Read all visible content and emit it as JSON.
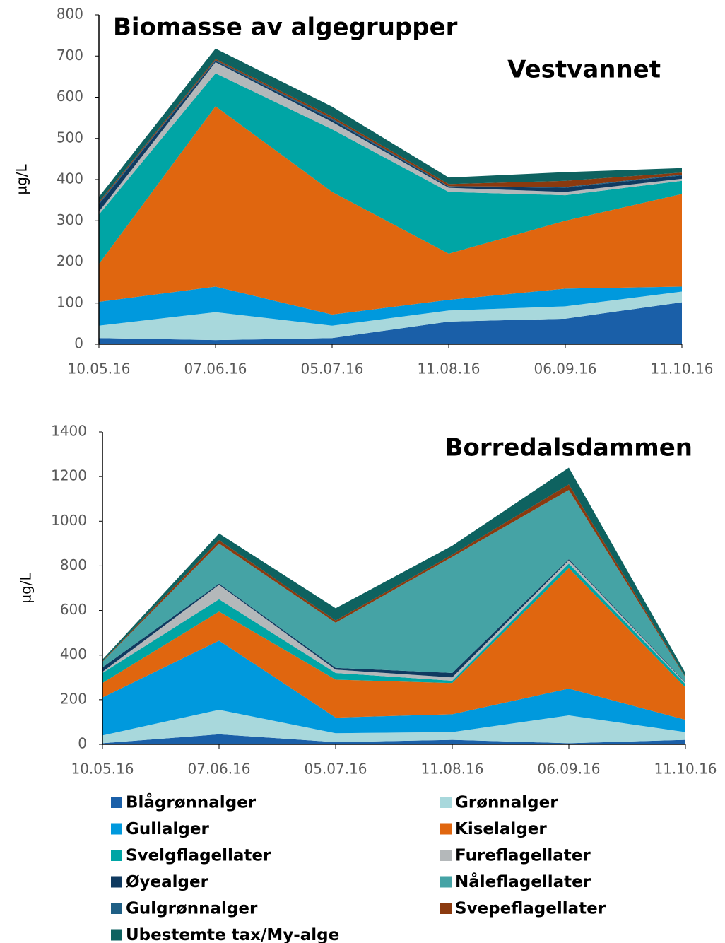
{
  "chart_data": [
    {
      "type": "stacked-area",
      "title": "Biomasse av algegrupper",
      "subtitle": "Vestvannet",
      "ylabel": "µg/L",
      "categories": [
        "10.05.16",
        "07.06.16",
        "05.07.16",
        "11.08.16",
        "06.09.16",
        "11.10.16"
      ],
      "ylim": [
        0,
        800
      ],
      "yticks": [
        0,
        100,
        200,
        300,
        400,
        500,
        600,
        700,
        800
      ],
      "series": [
        {
          "name": "Blågrønnalger",
          "color": "#1a5fa8",
          "values": [
            15,
            10,
            15,
            55,
            62,
            102
          ]
        },
        {
          "name": "Grønnalger",
          "color": "#a8d8dc",
          "values": [
            30,
            68,
            30,
            27,
            30,
            26
          ]
        },
        {
          "name": "Gullalger",
          "color": "#0099dd",
          "values": [
            58,
            62,
            27,
            26,
            43,
            12
          ]
        },
        {
          "name": "Kiselalger",
          "color": "#e0660f",
          "values": [
            92,
            438,
            298,
            112,
            165,
            225
          ]
        },
        {
          "name": "Svelgflagellater",
          "color": "#00a5a5",
          "values": [
            120,
            80,
            152,
            150,
            62,
            32
          ]
        },
        {
          "name": "Fureflagellater",
          "color": "#b4b8ba",
          "values": [
            7,
            27,
            18,
            10,
            8,
            5
          ]
        },
        {
          "name": "Øyealger",
          "color": "#0f3a60",
          "values": [
            18,
            3,
            5,
            3,
            10,
            8
          ]
        },
        {
          "name": "Nåleflagellater",
          "color": "#45a3a5",
          "values": [
            0,
            0,
            0,
            0,
            0,
            0
          ]
        },
        {
          "name": "Gulgrønnalger",
          "color": "#1f5f85",
          "values": [
            3,
            2,
            3,
            1,
            2,
            2
          ]
        },
        {
          "name": "Svepeflagellater",
          "color": "#8b3a0f",
          "values": [
            3,
            3,
            5,
            5,
            15,
            5
          ]
        },
        {
          "name": "Ubestemte tax/My-alge",
          "color": "#0e6260",
          "values": [
            12,
            25,
            24,
            16,
            21,
            11
          ]
        }
      ]
    },
    {
      "type": "stacked-area",
      "subtitle": "Borredalsdammen",
      "ylabel": "µg/L",
      "categories": [
        "10.05.16",
        "07.06.16",
        "05.07.16",
        "11.08.16",
        "06.09.16",
        "11.10.16"
      ],
      "ylim": [
        0,
        1400
      ],
      "yticks": [
        0,
        200,
        400,
        600,
        800,
        1000,
        1200,
        1400
      ],
      "series": [
        {
          "name": "Blågrønnalger",
          "color": "#1a5fa8",
          "values": [
            5,
            45,
            10,
            20,
            5,
            20
          ]
        },
        {
          "name": "Grønnalger",
          "color": "#a8d8dc",
          "values": [
            35,
            110,
            40,
            35,
            125,
            35
          ]
        },
        {
          "name": "Gullalger",
          "color": "#0099dd",
          "values": [
            170,
            310,
            70,
            80,
            120,
            55
          ]
        },
        {
          "name": "Kiselalger",
          "color": "#e0660f",
          "values": [
            65,
            130,
            170,
            140,
            540,
            145
          ]
        },
        {
          "name": "Svelgflagellater",
          "color": "#00a5a5",
          "values": [
            45,
            55,
            30,
            10,
            20,
            15
          ]
        },
        {
          "name": "Fureflagellater",
          "color": "#b4b8ba",
          "values": [
            5,
            65,
            15,
            15,
            15,
            5
          ]
        },
        {
          "name": "Øyealger",
          "color": "#0f3a60",
          "values": [
            20,
            5,
            8,
            20,
            5,
            3
          ]
        },
        {
          "name": "Nåleflagellater",
          "color": "#45a3a5",
          "values": [
            25,
            180,
            202,
            520,
            310,
            22
          ]
        },
        {
          "name": "Gulgrønnalger",
          "color": "#1f5f85",
          "values": [
            0,
            0,
            0,
            0,
            0,
            0
          ]
        },
        {
          "name": "Svepeflagellater",
          "color": "#8b3a0f",
          "values": [
            3,
            15,
            10,
            10,
            25,
            3
          ]
        },
        {
          "name": "Ubestemte tax/My-alge",
          "color": "#0e6260",
          "values": [
            7,
            30,
            55,
            40,
            75,
            17
          ]
        }
      ]
    }
  ]
}
